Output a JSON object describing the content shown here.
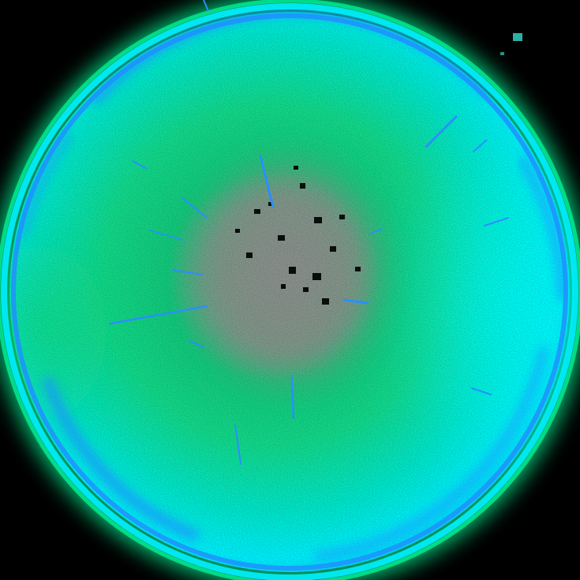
{
  "image": {
    "subject": "glowing-circular-orb",
    "colors": {
      "background": "#000000",
      "outer_glow": "#00ff9c",
      "cyan": "#00f0ff",
      "rim_blue": "#1e90ff",
      "body_green": "#12d98a",
      "center_gray": "#8a8a8a",
      "streak_blue": "#2a8fff"
    }
  }
}
